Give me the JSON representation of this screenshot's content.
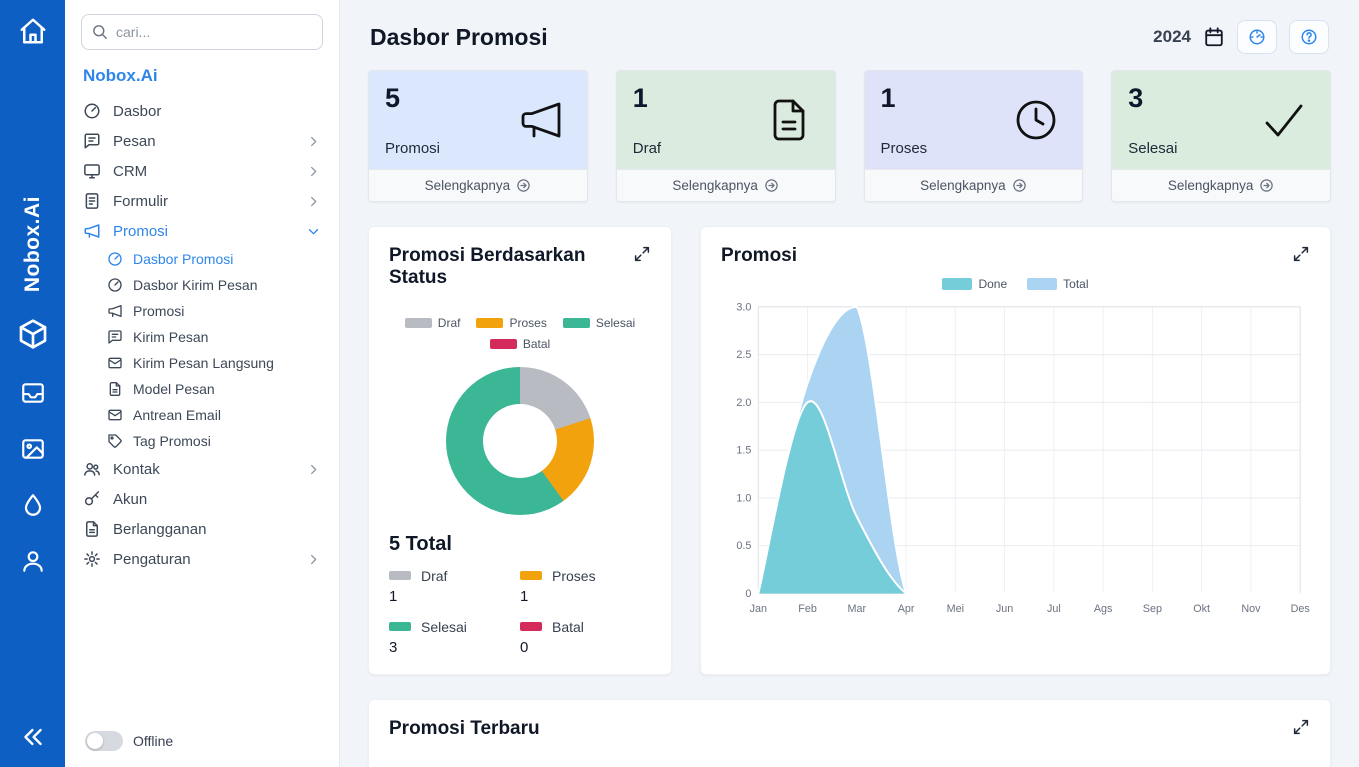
{
  "brand": {
    "rail_text": "Nobox.Ai"
  },
  "sidebar": {
    "search_placeholder": "cari...",
    "title": "Nobox.Ai",
    "menu_top": [
      {
        "label": "Dasbor"
      },
      {
        "label": "Pesan"
      },
      {
        "label": "CRM"
      },
      {
        "label": "Formulir"
      },
      {
        "label": "Promosi"
      }
    ],
    "submenu": [
      {
        "label": "Dasbor Promosi"
      },
      {
        "label": "Dasbor Kirim Pesan"
      },
      {
        "label": "Promosi"
      },
      {
        "label": "Kirim Pesan"
      },
      {
        "label": "Kirim Pesan Langsung"
      },
      {
        "label": "Model Pesan"
      },
      {
        "label": "Antrean Email"
      },
      {
        "label": "Tag Promosi"
      }
    ],
    "menu_bottom": [
      {
        "label": "Kontak"
      },
      {
        "label": "Akun"
      },
      {
        "label": "Berlangganan"
      },
      {
        "label": "Pengaturan"
      }
    ],
    "offline_label": "Offline"
  },
  "header": {
    "title": "Dasbor Promosi",
    "year": "2024"
  },
  "stats": [
    {
      "value": "5",
      "label": "Promosi",
      "more": "Selengkapnya",
      "bg": "#dbe7fd"
    },
    {
      "value": "1",
      "label": "Draf",
      "more": "Selengkapnya",
      "bg": "#dcebdf"
    },
    {
      "value": "1",
      "label": "Proses",
      "more": "Selengkapnya",
      "bg": "#dee3fa"
    },
    {
      "value": "3",
      "label": "Selesai",
      "more": "Selengkapnya",
      "bg": "#d9ecdd"
    }
  ],
  "cards": {
    "status_title": "Promosi Berdasarkan Status",
    "promosi_title": "Promosi",
    "latest_title": "Promosi Terbaru",
    "total_label": "5 Total"
  },
  "chart_data": [
    {
      "type": "pie",
      "title": "Promosi Berdasarkan Status",
      "labels": [
        "Draf",
        "Proses",
        "Selesai",
        "Batal"
      ],
      "values": [
        1,
        1,
        3,
        0
      ],
      "colors": [
        "#b8bcc2",
        "#f2a20c",
        "#3cb795",
        "#d42a5c"
      ],
      "total": 5,
      "total_text": "5 Total"
    },
    {
      "type": "area",
      "title": "Promosi",
      "x": [
        "Jan",
        "Feb",
        "Mar",
        "Apr",
        "Mei",
        "Jun",
        "Jul",
        "Ags",
        "Sep",
        "Okt",
        "Nov",
        "Des"
      ],
      "series": [
        {
          "name": "Total",
          "values": [
            0,
            2.2,
            3,
            0,
            0,
            0,
            0,
            0,
            0,
            0,
            0,
            0
          ],
          "color": "#abd4f3"
        },
        {
          "name": "Done",
          "values": [
            0,
            2.0,
            0.8,
            0,
            0,
            0,
            0,
            0,
            0,
            0,
            0,
            0
          ],
          "color": "#74cdd9"
        }
      ],
      "ylim": [
        0,
        3
      ],
      "yticks": [
        "0",
        "0.5",
        "1.0",
        "1.5",
        "2.0",
        "2.5",
        "3.0"
      ],
      "legend_position": "top",
      "grid": true
    }
  ]
}
